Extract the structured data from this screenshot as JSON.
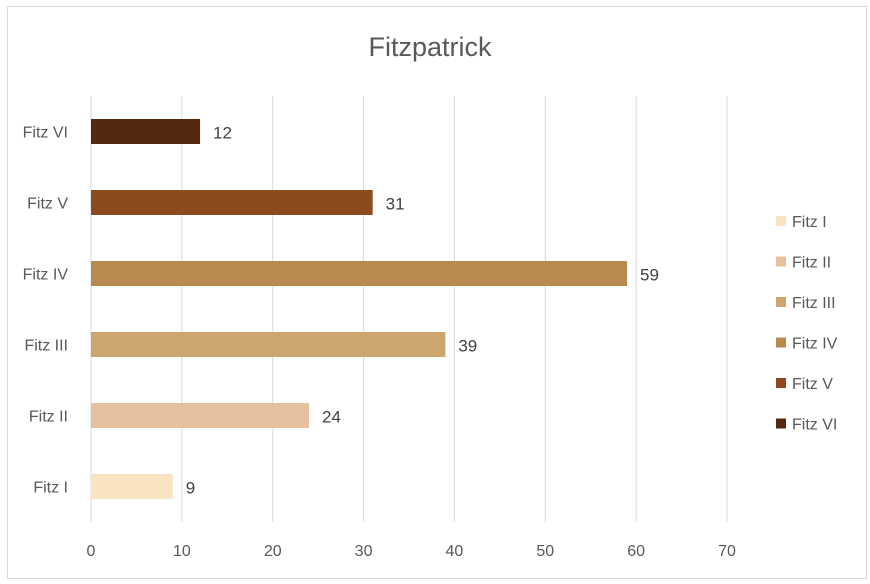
{
  "chart_data": {
    "type": "bar",
    "orientation": "horizontal",
    "title": "Fitzpatrick",
    "categories": [
      "Fitz I",
      "Fitz II",
      "Fitz III",
      "Fitz IV",
      "Fitz V",
      "Fitz VI"
    ],
    "values": [
      9,
      24,
      39,
      59,
      31,
      12
    ],
    "colors": [
      "#f8e4c0",
      "#e6c19e",
      "#cca66e",
      "#b98a4e",
      "#8e4a1f",
      "#54290f"
    ],
    "xlim": [
      0,
      70
    ],
    "xticks": [
      0,
      10,
      20,
      30,
      40,
      50,
      60,
      70
    ],
    "grid": true,
    "data_labels": true,
    "legend_position": "right",
    "legend": [
      "Fitz I",
      "Fitz II",
      "Fitz III",
      "Fitz IV",
      "Fitz V",
      "Fitz VI"
    ]
  }
}
